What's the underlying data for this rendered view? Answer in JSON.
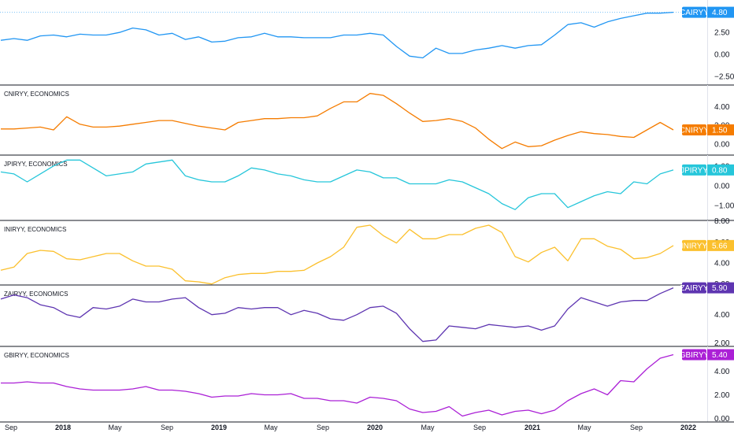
{
  "colors": {
    "CAIRYY": "#2196f3",
    "CNIRYY": "#f57c00",
    "JPIRYY": "#26c6da",
    "INIRYY": "#fbc02d",
    "ZAIRYY": "#5e35b1",
    "GBIRYY": "#ab20d6",
    "separator": "#131722",
    "axis_text": "#131722"
  },
  "x_axis": {
    "labels": [
      "Sep",
      "2018",
      "May",
      "Sep",
      "2019",
      "May",
      "Sep",
      "2020",
      "May",
      "Sep",
      "2021",
      "May",
      "Sep",
      "2022"
    ],
    "bold": [
      false,
      true,
      false,
      false,
      true,
      false,
      false,
      true,
      false,
      false,
      true,
      false,
      false,
      true
    ]
  },
  "chart_data": [
    {
      "type": "line",
      "symbol": "CAIRYY",
      "title": "",
      "last_value": "4.80",
      "yticks": [
        "4.80",
        "2.50",
        "0.00",
        "−2.50"
      ],
      "ylim": [
        -3.5,
        6.2
      ],
      "dotted_last_line": true,
      "x": [
        "2017-09",
        "2017-10",
        "2017-11",
        "2017-12",
        "2018-01",
        "2018-02",
        "2018-03",
        "2018-04",
        "2018-05",
        "2018-06",
        "2018-07",
        "2018-08",
        "2018-09",
        "2018-10",
        "2018-11",
        "2018-12",
        "2019-01",
        "2019-02",
        "2019-03",
        "2019-04",
        "2019-05",
        "2019-06",
        "2019-07",
        "2019-08",
        "2019-09",
        "2019-10",
        "2019-11",
        "2019-12",
        "2020-01",
        "2020-02",
        "2020-03",
        "2020-04",
        "2020-05",
        "2020-06",
        "2020-07",
        "2020-08",
        "2020-09",
        "2020-10",
        "2020-11",
        "2020-12",
        "2021-01",
        "2021-02",
        "2021-03",
        "2021-04",
        "2021-05",
        "2021-06",
        "2021-07",
        "2021-08",
        "2021-09",
        "2021-10",
        "2021-11",
        "2021-12"
      ],
      "series": [
        {
          "values": [
            1.6,
            1.8,
            1.6,
            2.1,
            2.2,
            2.0,
            2.3,
            2.2,
            2.2,
            2.5,
            3.0,
            2.8,
            2.2,
            2.4,
            1.7,
            2.0,
            1.4,
            1.5,
            1.9,
            2.0,
            2.4,
            2.0,
            2.0,
            1.9,
            1.9,
            1.9,
            2.2,
            2.2,
            2.4,
            2.2,
            0.9,
            -0.2,
            -0.4,
            0.7,
            0.1,
            0.1,
            0.5,
            0.7,
            1.0,
            0.7,
            1.0,
            1.1,
            2.2,
            3.4,
            3.6,
            3.1,
            3.7,
            4.1,
            4.4,
            4.7,
            4.7,
            4.8
          ]
        }
      ]
    },
    {
      "type": "line",
      "symbol": "CNIRYY",
      "title": "CNIRYY, ECONOMICS",
      "last_value": "1.50",
      "yticks": [
        "4.00",
        "2.00",
        "0.00"
      ],
      "ylim": [
        -1.2,
        6.3
      ],
      "dotted_last_line": false,
      "x": [
        "2017-09",
        "2017-10",
        "2017-11",
        "2017-12",
        "2018-01",
        "2018-02",
        "2018-03",
        "2018-04",
        "2018-05",
        "2018-06",
        "2018-07",
        "2018-08",
        "2018-09",
        "2018-10",
        "2018-11",
        "2018-12",
        "2019-01",
        "2019-02",
        "2019-03",
        "2019-04",
        "2019-05",
        "2019-06",
        "2019-07",
        "2019-08",
        "2019-09",
        "2019-10",
        "2019-11",
        "2019-12",
        "2020-01",
        "2020-02",
        "2020-03",
        "2020-04",
        "2020-05",
        "2020-06",
        "2020-07",
        "2020-08",
        "2020-09",
        "2020-10",
        "2020-11",
        "2020-12",
        "2021-01",
        "2021-02",
        "2021-03",
        "2021-04",
        "2021-05",
        "2021-06",
        "2021-07",
        "2021-08",
        "2021-09",
        "2021-10",
        "2021-11",
        "2021-12"
      ],
      "series": [
        {
          "values": [
            1.6,
            1.6,
            1.7,
            1.8,
            1.5,
            2.9,
            2.1,
            1.8,
            1.8,
            1.9,
            2.1,
            2.3,
            2.5,
            2.5,
            2.2,
            1.9,
            1.7,
            1.5,
            2.3,
            2.5,
            2.7,
            2.7,
            2.8,
            2.8,
            3.0,
            3.8,
            4.5,
            4.5,
            5.4,
            5.2,
            4.3,
            3.3,
            2.4,
            2.5,
            2.7,
            2.4,
            1.7,
            0.5,
            -0.5,
            0.2,
            -0.3,
            -0.2,
            0.4,
            0.9,
            1.3,
            1.1,
            1.0,
            0.8,
            0.7,
            1.5,
            2.3,
            1.5
          ]
        }
      ]
    },
    {
      "type": "line",
      "symbol": "JPIRYY",
      "title": "JPIRYY, ECONOMICS",
      "last_value": "0.80",
      "yticks": [
        "1.00",
        "0.00",
        "−1.00"
      ],
      "ylim": [
        -1.75,
        1.55
      ],
      "dotted_last_line": false,
      "x": [
        "2017-09",
        "2017-10",
        "2017-11",
        "2017-12",
        "2018-01",
        "2018-02",
        "2018-03",
        "2018-04",
        "2018-05",
        "2018-06",
        "2018-07",
        "2018-08",
        "2018-09",
        "2018-10",
        "2018-11",
        "2018-12",
        "2019-01",
        "2019-02",
        "2019-03",
        "2019-04",
        "2019-05",
        "2019-06",
        "2019-07",
        "2019-08",
        "2019-09",
        "2019-10",
        "2019-11",
        "2019-12",
        "2020-01",
        "2020-02",
        "2020-03",
        "2020-04",
        "2020-05",
        "2020-06",
        "2020-07",
        "2020-08",
        "2020-09",
        "2020-10",
        "2020-11",
        "2020-12",
        "2021-01",
        "2021-02",
        "2021-03",
        "2021-04",
        "2021-05",
        "2021-06",
        "2021-07",
        "2021-08",
        "2021-09",
        "2021-10",
        "2021-11",
        "2021-12"
      ],
      "series": [
        {
          "values": [
            0.7,
            0.6,
            0.2,
            0.6,
            1.0,
            1.3,
            1.3,
            0.9,
            0.5,
            0.6,
            0.7,
            1.1,
            1.2,
            1.3,
            0.5,
            0.3,
            0.2,
            0.2,
            0.5,
            0.9,
            0.8,
            0.6,
            0.5,
            0.3,
            0.2,
            0.2,
            0.5,
            0.8,
            0.7,
            0.4,
            0.4,
            0.1,
            0.1,
            0.1,
            0.3,
            0.2,
            -0.1,
            -0.4,
            -0.9,
            -1.2,
            -0.6,
            -0.4,
            -0.4,
            -1.1,
            -0.8,
            -0.5,
            -0.3,
            -0.4,
            0.2,
            0.1,
            0.6,
            0.8
          ]
        }
      ]
    },
    {
      "type": "line",
      "symbol": "INIRYY",
      "title": "INIRYY, ECONOMICS",
      "last_value": "5.66",
      "yticks": [
        "8.00",
        "6.00",
        "4.00",
        "2.00"
      ],
      "ylim": [
        1.9,
        8.05
      ],
      "dotted_last_line": false,
      "x": [
        "2017-09",
        "2017-10",
        "2017-11",
        "2017-12",
        "2018-01",
        "2018-02",
        "2018-03",
        "2018-04",
        "2018-05",
        "2018-06",
        "2018-07",
        "2018-08",
        "2018-09",
        "2018-10",
        "2018-11",
        "2018-12",
        "2019-01",
        "2019-02",
        "2019-03",
        "2019-04",
        "2019-05",
        "2019-06",
        "2019-07",
        "2019-08",
        "2019-09",
        "2019-10",
        "2019-11",
        "2019-12",
        "2020-01",
        "2020-02",
        "2020-03",
        "2020-04",
        "2020-05",
        "2020-06",
        "2020-07",
        "2020-08",
        "2020-09",
        "2020-10",
        "2020-11",
        "2020-12",
        "2021-01",
        "2021-02",
        "2021-03",
        "2021-04",
        "2021-05",
        "2021-06",
        "2021-07",
        "2021-08",
        "2021-09",
        "2021-10",
        "2021-11",
        "2021-12"
      ],
      "series": [
        {
          "values": [
            3.3,
            3.6,
            4.9,
            5.2,
            5.1,
            4.4,
            4.3,
            4.6,
            4.9,
            4.9,
            4.2,
            3.7,
            3.7,
            3.4,
            2.3,
            2.2,
            2.0,
            2.6,
            2.9,
            3.0,
            3.0,
            3.2,
            3.2,
            3.3,
            4.0,
            4.6,
            5.5,
            7.4,
            7.6,
            6.6,
            5.9,
            7.2,
            6.3,
            6.3,
            6.7,
            6.7,
            7.3,
            7.6,
            6.9,
            4.6,
            4.1,
            5.0,
            5.5,
            4.2,
            6.3,
            6.3,
            5.6,
            5.3,
            4.4,
            4.5,
            4.9,
            5.66
          ]
        }
      ]
    },
    {
      "type": "line",
      "symbol": "ZAIRYY",
      "title": "ZAIRYY, ECONOMICS",
      "last_value": "5.90",
      "yticks": [
        "4.00",
        "2.00"
      ],
      "ylim": [
        1.75,
        6.1
      ],
      "dotted_last_line": false,
      "x": [
        "2017-09",
        "2017-10",
        "2017-11",
        "2017-12",
        "2018-01",
        "2018-02",
        "2018-03",
        "2018-04",
        "2018-05",
        "2018-06",
        "2018-07",
        "2018-08",
        "2018-09",
        "2018-10",
        "2018-11",
        "2018-12",
        "2019-01",
        "2019-02",
        "2019-03",
        "2019-04",
        "2019-05",
        "2019-06",
        "2019-07",
        "2019-08",
        "2019-09",
        "2019-10",
        "2019-11",
        "2019-12",
        "2020-01",
        "2020-02",
        "2020-03",
        "2020-04",
        "2020-05",
        "2020-06",
        "2020-07",
        "2020-08",
        "2020-09",
        "2020-10",
        "2020-11",
        "2020-12",
        "2021-01",
        "2021-02",
        "2021-03",
        "2021-04",
        "2021-05",
        "2021-06",
        "2021-07",
        "2021-08",
        "2021-09",
        "2021-10",
        "2021-11",
        "2021-12"
      ],
      "series": [
        {
          "values": [
            5.1,
            5.4,
            5.2,
            4.7,
            4.5,
            4.0,
            3.8,
            4.5,
            4.4,
            4.6,
            5.1,
            4.9,
            4.9,
            5.1,
            5.2,
            4.5,
            4.0,
            4.1,
            4.5,
            4.4,
            4.5,
            4.5,
            4.0,
            4.3,
            4.1,
            3.7,
            3.6,
            4.0,
            4.5,
            4.6,
            4.1,
            3.0,
            2.1,
            2.2,
            3.2,
            3.1,
            3.0,
            3.3,
            3.2,
            3.1,
            3.2,
            2.9,
            3.2,
            4.4,
            5.2,
            4.9,
            4.6,
            4.9,
            5.0,
            5.0,
            5.5,
            5.9
          ]
        }
      ]
    },
    {
      "type": "line",
      "symbol": "GBIRYY",
      "title": "GBIRYY, ECONOMICS",
      "last_value": "5.40",
      "yticks": [
        "4.00",
        "2.00",
        "0.00"
      ],
      "ylim": [
        -0.3,
        6.1
      ],
      "dotted_last_line": false,
      "x": [
        "2017-09",
        "2017-10",
        "2017-11",
        "2017-12",
        "2018-01",
        "2018-02",
        "2018-03",
        "2018-04",
        "2018-05",
        "2018-06",
        "2018-07",
        "2018-08",
        "2018-09",
        "2018-10",
        "2018-11",
        "2018-12",
        "2019-01",
        "2019-02",
        "2019-03",
        "2019-04",
        "2019-05",
        "2019-06",
        "2019-07",
        "2019-08",
        "2019-09",
        "2019-10",
        "2019-11",
        "2019-12",
        "2020-01",
        "2020-02",
        "2020-03",
        "2020-04",
        "2020-05",
        "2020-06",
        "2020-07",
        "2020-08",
        "2020-09",
        "2020-10",
        "2020-11",
        "2020-12",
        "2021-01",
        "2021-02",
        "2021-03",
        "2021-04",
        "2021-05",
        "2021-06",
        "2021-07",
        "2021-08",
        "2021-09",
        "2021-10",
        "2021-11",
        "2021-12"
      ],
      "series": [
        {
          "values": [
            3.0,
            3.0,
            3.1,
            3.0,
            3.0,
            2.7,
            2.5,
            2.4,
            2.4,
            2.4,
            2.5,
            2.7,
            2.4,
            2.4,
            2.3,
            2.1,
            1.8,
            1.9,
            1.9,
            2.1,
            2.0,
            2.0,
            2.1,
            1.7,
            1.7,
            1.5,
            1.5,
            1.3,
            1.8,
            1.7,
            1.5,
            0.8,
            0.5,
            0.6,
            1.0,
            0.2,
            0.5,
            0.7,
            0.3,
            0.6,
            0.7,
            0.4,
            0.7,
            1.5,
            2.1,
            2.5,
            2.0,
            3.2,
            3.1,
            4.2,
            5.1,
            5.4
          ]
        }
      ]
    }
  ]
}
